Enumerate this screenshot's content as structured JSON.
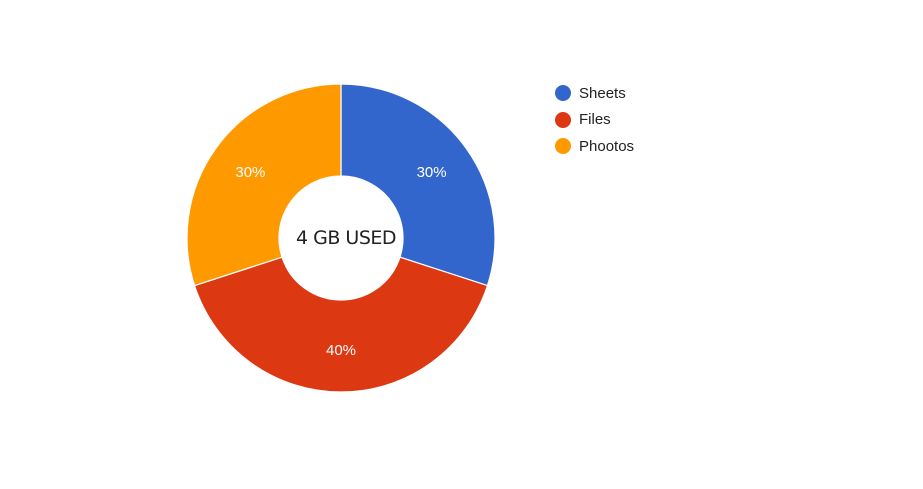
{
  "chart_data": {
    "type": "pie",
    "donut": true,
    "center_text": "4 GB USED",
    "slices": [
      {
        "name": "Sheets",
        "value": 30,
        "label": "30%",
        "color": "#3366cc"
      },
      {
        "name": "Files",
        "value": 40,
        "label": "40%",
        "color": "#dc3912"
      },
      {
        "name": "Phootos",
        "value": 30,
        "label": "30%",
        "color": "#ff9900"
      }
    ],
    "legend_position": "right"
  }
}
